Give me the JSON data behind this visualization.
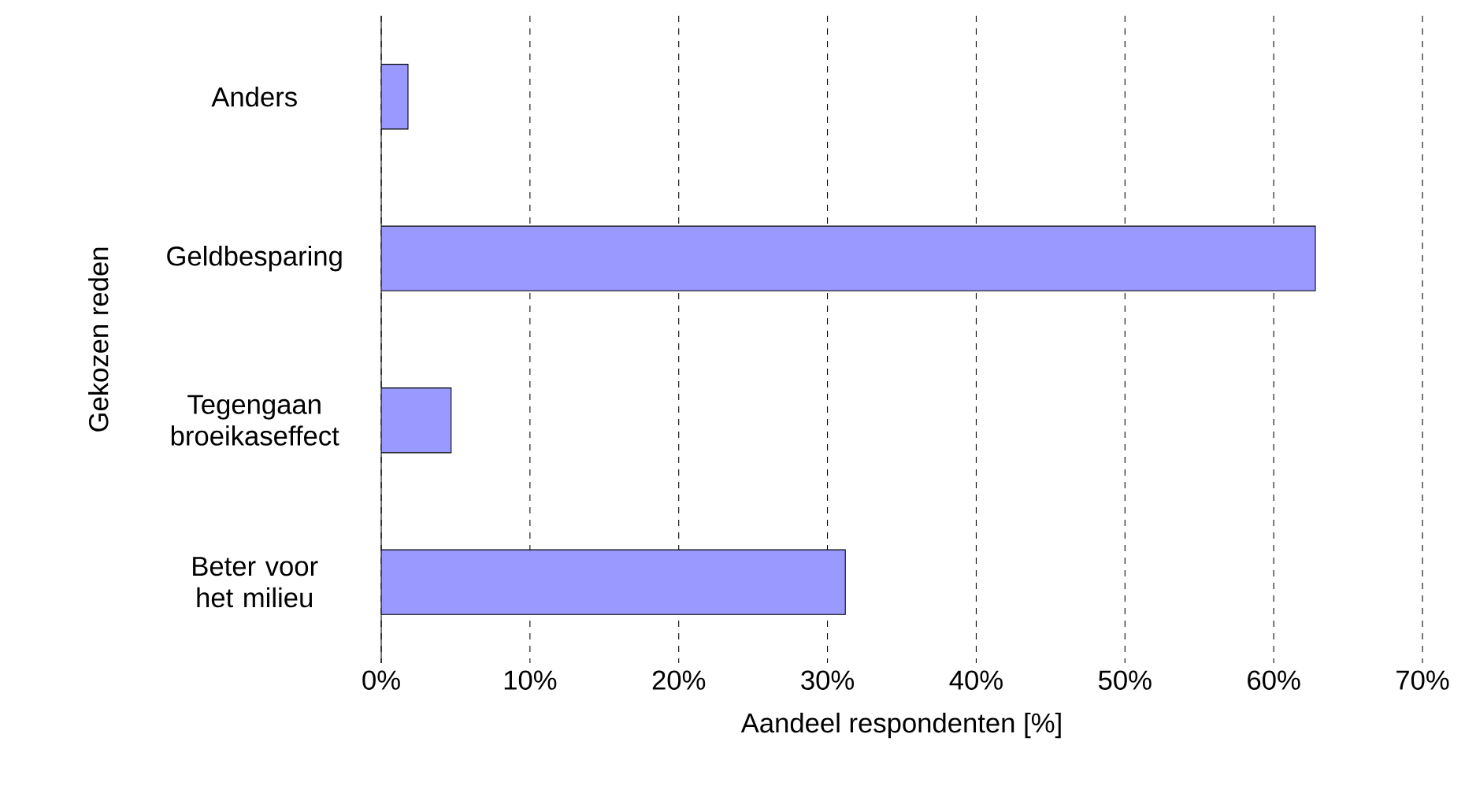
{
  "chart_data": {
    "type": "bar",
    "orientation": "horizontal",
    "xlabel": "Aandeel respondenten [%]",
    "ylabel": "Gekozen reden",
    "categories": [
      "Anders",
      "Geldbesparing",
      "Tegengaan broeikaseffect",
      "Beter voor het milieu"
    ],
    "values": [
      1.8,
      62.8,
      4.7,
      31.2
    ],
    "color": "#9999ff",
    "xlim": [
      0,
      70
    ],
    "xticks": [
      {
        "value": 0,
        "label": "0%"
      },
      {
        "value": 10,
        "label": "10%"
      },
      {
        "value": 20,
        "label": "20%"
      },
      {
        "value": 30,
        "label": "30%"
      },
      {
        "value": 40,
        "label": "40%"
      },
      {
        "value": 50,
        "label": "50%"
      },
      {
        "value": 60,
        "label": "60%"
      },
      {
        "value": 70,
        "label": "70%"
      }
    ],
    "grid": "x"
  }
}
